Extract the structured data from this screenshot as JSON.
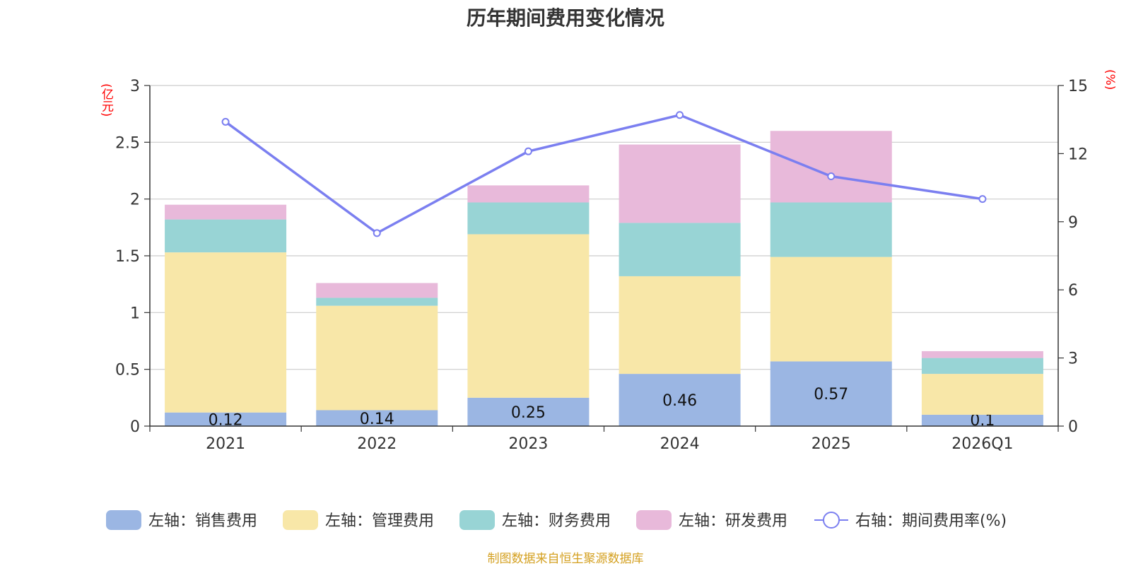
{
  "chart_data": {
    "type": "bar",
    "title": "历年期间费用变化情况",
    "categories": [
      "2021",
      "2022",
      "2023",
      "2024",
      "2025",
      "2026Q1"
    ],
    "left_axis": {
      "unit": "(亿元)",
      "ylim": [
        0,
        3
      ],
      "ticks": [
        "0",
        "0.5",
        "1",
        "1.5",
        "2",
        "2.5",
        "3"
      ]
    },
    "right_axis": {
      "unit": "(%)",
      "ylim": [
        0,
        15
      ],
      "ticks": [
        "0",
        "3",
        "6",
        "9",
        "12",
        "15"
      ]
    },
    "series": [
      {
        "name": "左轴：销售费用",
        "type": "bar",
        "stack": true,
        "color": "#9bb6e3",
        "values": [
          0.12,
          0.14,
          0.25,
          0.46,
          0.57,
          0.1
        ],
        "labels": [
          "0.12",
          "0.14",
          "0.25",
          "0.46",
          "0.57",
          "0.1"
        ]
      },
      {
        "name": "左轴：管理费用",
        "type": "bar",
        "stack": true,
        "color": "#f8e7a8",
        "values": [
          1.41,
          0.92,
          1.44,
          0.86,
          0.92,
          0.36
        ]
      },
      {
        "name": "左轴：财务费用",
        "type": "bar",
        "stack": true,
        "color": "#98d4d5",
        "values": [
          0.29,
          0.07,
          0.28,
          0.47,
          0.48,
          0.14
        ]
      },
      {
        "name": "左轴：研发费用",
        "type": "bar",
        "stack": true,
        "color": "#e8b9da",
        "values": [
          0.13,
          0.13,
          0.15,
          0.69,
          0.63,
          0.06
        ]
      },
      {
        "name": "右轴：期间费用率(%)",
        "type": "line",
        "axis": "right",
        "color": "#7b7ff0",
        "values": [
          13.4,
          8.5,
          12.1,
          13.7,
          11.0,
          10.0
        ]
      }
    ],
    "grid": true,
    "legend_position": "bottom"
  },
  "source_text": "制图数据来自恒生聚源数据库",
  "colors": {
    "title": "#333333",
    "axis_unit": "#ff0000",
    "source": "#d4a020",
    "grid": "#cccccc",
    "axis": "#333333"
  }
}
